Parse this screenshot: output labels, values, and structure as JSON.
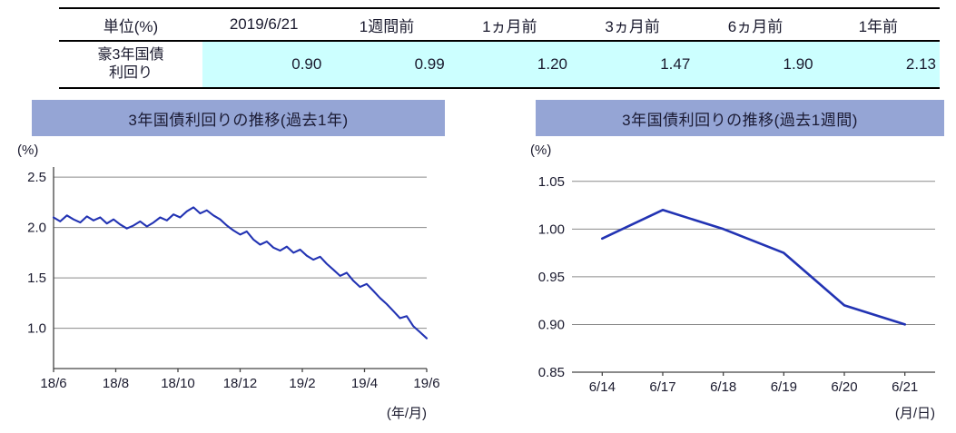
{
  "table": {
    "unit_label": "単位(%)",
    "columns": [
      "2019/6/21",
      "1週間前",
      "1ヵ月前",
      "3ヵ月前",
      "6ヵ月前",
      "1年前"
    ],
    "row_label": "豪3年国債\n利回り",
    "values": [
      "0.90",
      "0.99",
      "1.20",
      "1.47",
      "1.90",
      "2.13"
    ]
  },
  "colors": {
    "title_bar_bg": "#95a5d5",
    "title_text": "#1a1a33",
    "line_color": "#2233b3",
    "cell_bg": "#ccffff",
    "grid": "#8a8a8a",
    "axis": "#444444",
    "text": "#1a1a2e"
  },
  "chart_data": [
    {
      "type": "line",
      "title": "3年国債利回りの推移(過去1年)",
      "ylabel": "(%)",
      "xlabel": "(年/月)",
      "ylim": [
        0.6,
        2.6
      ],
      "yticks": [
        1.0,
        1.5,
        2.0,
        2.5
      ],
      "yticklabels": [
        "1.0",
        "1.5",
        "2.0",
        "2.5"
      ],
      "xticklabels": [
        "18/6",
        "18/8",
        "18/10",
        "18/12",
        "19/2",
        "19/4",
        "19/6"
      ],
      "grid": "horizontal",
      "legend": "none",
      "values": [
        2.1,
        2.06,
        2.12,
        2.08,
        2.05,
        2.11,
        2.07,
        2.1,
        2.04,
        2.08,
        2.03,
        1.99,
        2.02,
        2.06,
        2.01,
        2.05,
        2.1,
        2.07,
        2.13,
        2.1,
        2.16,
        2.2,
        2.14,
        2.17,
        2.12,
        2.08,
        2.02,
        1.97,
        1.93,
        1.96,
        1.88,
        1.83,
        1.86,
        1.8,
        1.77,
        1.81,
        1.75,
        1.78,
        1.72,
        1.68,
        1.71,
        1.64,
        1.58,
        1.52,
        1.55,
        1.47,
        1.41,
        1.44,
        1.37,
        1.3,
        1.24,
        1.17,
        1.1,
        1.12,
        1.02,
        0.96,
        0.9
      ]
    },
    {
      "type": "line",
      "title": "3年国債利回りの推移(過去1週間)",
      "ylabel": "(%)",
      "xlabel": "(月/日)",
      "ylim": [
        0.85,
        1.065
      ],
      "yticks": [
        0.85,
        0.9,
        0.95,
        1.0,
        1.05
      ],
      "yticklabels": [
        "0.85",
        "0.90",
        "0.95",
        "1.00",
        "1.05"
      ],
      "categories": [
        "6/14",
        "6/17",
        "6/18",
        "6/19",
        "6/20",
        "6/21"
      ],
      "grid": "horizontal",
      "legend": "none",
      "values": [
        0.99,
        1.02,
        1.0,
        0.975,
        0.92,
        0.9
      ]
    }
  ]
}
